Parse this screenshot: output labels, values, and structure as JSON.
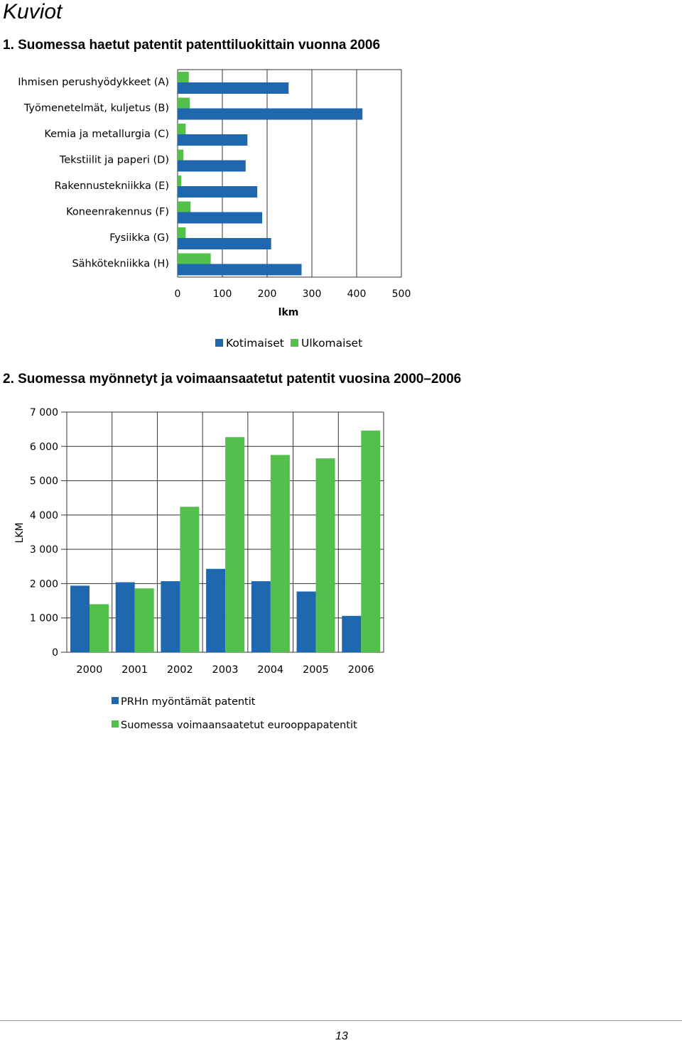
{
  "page": {
    "heading": "Kuviot",
    "page_number": "13"
  },
  "colors": {
    "kotimaiset": "#1f68b0",
    "ulkomaiset": "#52c04a",
    "grid": "#000000"
  },
  "chart_data": [
    {
      "type": "bar",
      "orientation": "horizontal",
      "title": "1. Suomessa haetut patentit patenttiluokittain vuonna 2006",
      "categories": [
        "Ihmisen perushyödykkeet (A)",
        "Työmenetelmät, kuljetus (B)",
        "Kemia ja metallurgia (C)",
        "Tekstiilit ja paperi (D)",
        "Rakennustekniikka (E)",
        "Koneenrakennus (F)",
        "Fysiikka (G)",
        "Sähkötekniikka (H)"
      ],
      "series": [
        {
          "name": "Kotimaiset",
          "values": [
            248,
            413,
            156,
            152,
            178,
            189,
            209,
            277
          ]
        },
        {
          "name": "Ulkomaiset",
          "values": [
            25,
            27,
            18,
            13,
            8,
            29,
            18,
            74
          ]
        }
      ],
      "xlabel": "lkm",
      "xlim": [
        0,
        500
      ],
      "xticks": [
        "0",
        "100",
        "200",
        "300",
        "400",
        "500"
      ],
      "grid": true,
      "legend": "bottom"
    },
    {
      "type": "bar",
      "orientation": "vertical",
      "title": "2. Suomessa myönnetyt ja voimaansaatetut patentit vuosina 2000–2006",
      "categories": [
        "2000",
        "2001",
        "2002",
        "2003",
        "2004",
        "2005",
        "2006"
      ],
      "series": [
        {
          "name": "PRHn myöntämät patentit",
          "values": [
            1940,
            2040,
            2070,
            2430,
            2070,
            1770,
            1060
          ]
        },
        {
          "name": "Suomessa voimaansaatetut eurooppapatentit",
          "values": [
            1400,
            1860,
            4240,
            6270,
            5750,
            5650,
            6460
          ]
        }
      ],
      "ylabel": "LKM",
      "ylim": [
        0,
        7000
      ],
      "yticks": [
        "0",
        "1 000",
        "2 000",
        "3 000",
        "4 000",
        "5 000",
        "6 000",
        "7 000"
      ],
      "grid": true,
      "legend": "bottom"
    }
  ]
}
